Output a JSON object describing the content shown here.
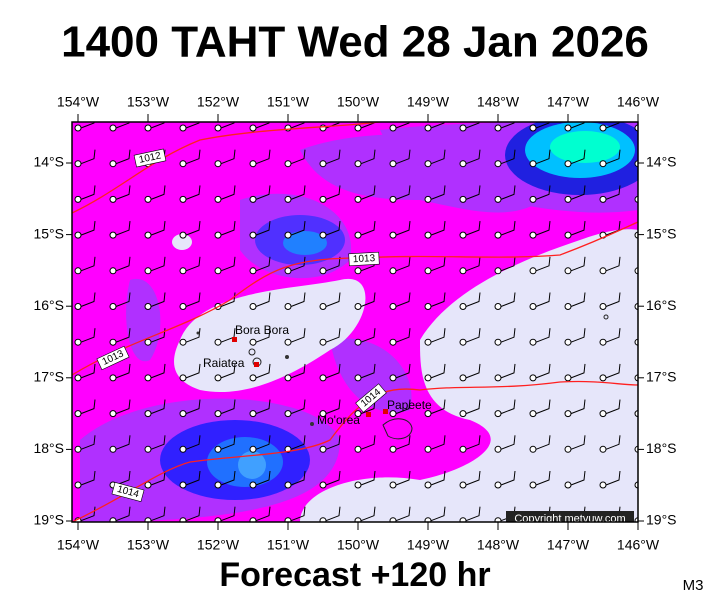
{
  "title": "1400 TAHT Wed 28 Jan 2026",
  "map": {
    "lon_labels": [
      "154°W",
      "153°W",
      "152°W",
      "151°W",
      "150°W",
      "149°W",
      "148°W",
      "147°W",
      "146°W"
    ],
    "lat_labels": [
      "14°S",
      "15°S",
      "16°S",
      "17°S",
      "18°S",
      "19°S"
    ],
    "places": [
      {
        "label": "Bora Bora"
      },
      {
        "label": "Raiatea"
      },
      {
        "label": "Mo'orea"
      },
      {
        "label": "Papeete"
      }
    ],
    "isobar_labels": [
      "1012",
      "1013",
      "1013",
      "1014",
      "1014"
    ],
    "copyright": "Copyright metvuw.com"
  },
  "footer": {
    "forecast": "Forecast +120 hr",
    "code": "M3"
  }
}
